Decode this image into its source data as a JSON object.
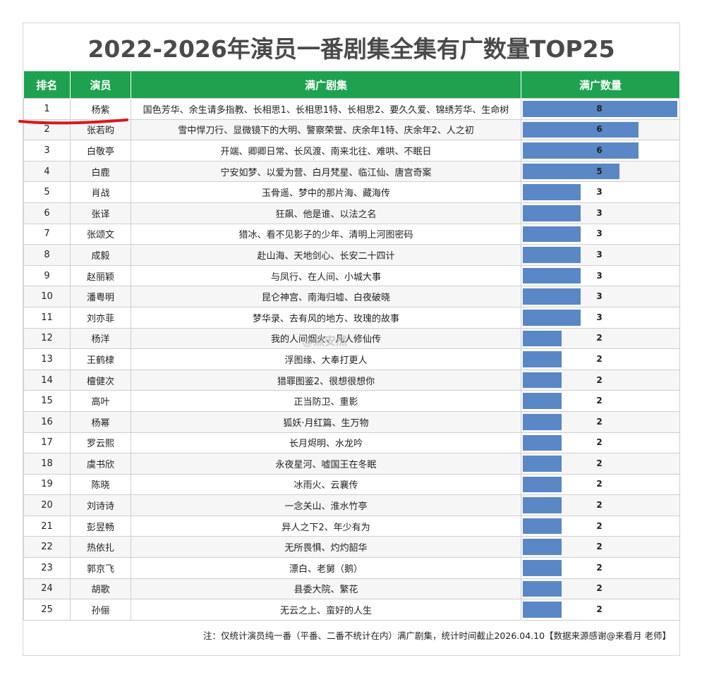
{
  "title": "2022-2026年演员一番剧集全集有广数量TOP25",
  "headers": {
    "rank": "排名",
    "actor": "演员",
    "dramas": "满广剧集",
    "count": "满广数量"
  },
  "watermark": "@焦安然",
  "note": "注：仅统计演员纯一番（平番、二番不统计在内）满广剧集，统计时间截止2026.04.10【数据来源感谢@来看月 老师】",
  "colors": {
    "header_bg": "#1ea24f",
    "bar": "#5a87c6",
    "underline": "#d7191c"
  },
  "chart_data": {
    "type": "table",
    "title": "2022-2026年演员一番剧集全集有广数量TOP25",
    "xlim": [
      0,
      8
    ],
    "rows": [
      {
        "rank": "1",
        "actor": "杨紫",
        "dramas": "国色芳华、余生请多指教、长相思1、长相思1特、长相思2、要久久爱、锦绣芳华、生命树",
        "count": 8
      },
      {
        "rank": "2",
        "actor": "张若昀",
        "dramas": "雪中悍刀行、显微镜下的大明、警察荣誉、庆余年1特、庆余年2、人之初",
        "count": 6
      },
      {
        "rank": "3",
        "actor": "白敬亭",
        "dramas": "开端、卿卿日常、长风渡、南来北往、难哄、不眠日",
        "count": 6
      },
      {
        "rank": "4",
        "actor": "白鹿",
        "dramas": "宁安如梦、以爱为营、白月梵星、临江仙、唐宫奇案",
        "count": 5
      },
      {
        "rank": "5",
        "actor": "肖战",
        "dramas": "玉骨遥、梦中的那片海、藏海传",
        "count": 3
      },
      {
        "rank": "6",
        "actor": "张译",
        "dramas": "狂飙、他是谁、以法之名",
        "count": 3
      },
      {
        "rank": "7",
        "actor": "张颂文",
        "dramas": "猎冰、看不见影子的少年、清明上河图密码",
        "count": 3
      },
      {
        "rank": "8",
        "actor": "成毅",
        "dramas": "赴山海、天地剑心、长安二十四计",
        "count": 3
      },
      {
        "rank": "9",
        "actor": "赵丽颖",
        "dramas": "与凤行、在人间、小城大事",
        "count": 3
      },
      {
        "rank": "10",
        "actor": "潘粤明",
        "dramas": "昆仑神宫、南海归墟、白夜破晓",
        "count": 3
      },
      {
        "rank": "11",
        "actor": "刘亦菲",
        "dramas": "梦华录、去有风的地方、玫瑰的故事",
        "count": 3
      },
      {
        "rank": "12",
        "actor": "杨洋",
        "dramas": "我的人间烟火、凡人修仙传",
        "count": 2
      },
      {
        "rank": "13",
        "actor": "王鹤棣",
        "dramas": "浮图缘、大奉打更人",
        "count": 2
      },
      {
        "rank": "14",
        "actor": "檀健次",
        "dramas": "猎罪图鉴2、很想很想你",
        "count": 2
      },
      {
        "rank": "15",
        "actor": "高叶",
        "dramas": "正当防卫、重影",
        "count": 2
      },
      {
        "rank": "16",
        "actor": "杨幂",
        "dramas": "狐妖·月红篇、生万物",
        "count": 2
      },
      {
        "rank": "17",
        "actor": "罗云熙",
        "dramas": "长月烬明、水龙吟",
        "count": 2
      },
      {
        "rank": "18",
        "actor": "虞书欣",
        "dramas": "永夜星河、嘘国王在冬眠",
        "count": 2
      },
      {
        "rank": "19",
        "actor": "陈晓",
        "dramas": "冰雨火、云襄传",
        "count": 2
      },
      {
        "rank": "20",
        "actor": "刘诗诗",
        "dramas": "一念关山、淮水竹亭",
        "count": 2
      },
      {
        "rank": "21",
        "actor": "彭昱畅",
        "dramas": "异人之下2、年少有为",
        "count": 2
      },
      {
        "rank": "22",
        "actor": "热依扎",
        "dramas": "无所畏惧、灼灼韶华",
        "count": 2
      },
      {
        "rank": "23",
        "actor": "郭京飞",
        "dramas": "漂白、老舅（鹅）",
        "count": 2
      },
      {
        "rank": "24",
        "actor": "胡歌",
        "dramas": "县委大院、繁花",
        "count": 2
      },
      {
        "rank": "25",
        "actor": "孙俪",
        "dramas": "无云之上、蛮好的人生",
        "count": 2
      }
    ]
  }
}
